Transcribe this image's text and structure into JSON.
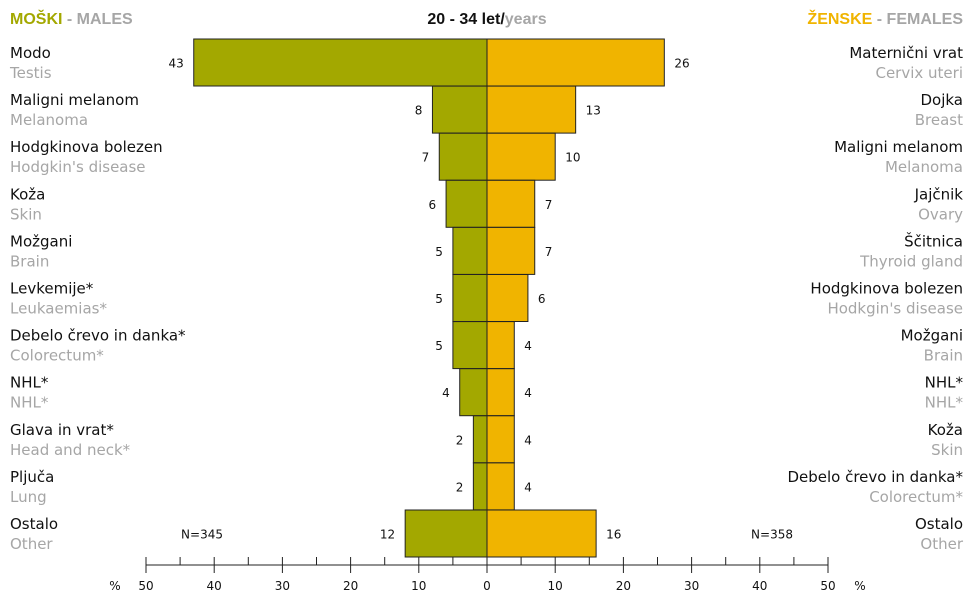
{
  "header": {
    "males_si": "MOŠKI",
    "sep": " - ",
    "males_en": "MALES",
    "title_main": "20 - 34 let/",
    "title_sub": "years",
    "females_si": "ŽENSKE",
    "females_en": "FEMALES"
  },
  "colors": {
    "males": "#a3a800",
    "females": "#f0b400",
    "gray": "#a6a6a6",
    "text": "#111111"
  },
  "chart_data": {
    "type": "bar",
    "orientation": "horizontal-population-pyramid",
    "males": {
      "n_label": "N=345",
      "categories": [
        {
          "si": "Modo",
          "en": "Testis",
          "value": 43
        },
        {
          "si": "Maligni melanom",
          "en": "Melanoma",
          "value": 8
        },
        {
          "si": "Hodgkinova bolezen",
          "en": "Hodgkin's disease",
          "value": 7
        },
        {
          "si": "Koža",
          "en": "Skin",
          "value": 6
        },
        {
          "si": "Možgani",
          "en": "Brain",
          "value": 5
        },
        {
          "si": "Levkemije*",
          "en": "Leukaemias*",
          "value": 5
        },
        {
          "si": "Debelo črevo in danka*",
          "en": "Colorectum*",
          "value": 5
        },
        {
          "si": "NHL*",
          "en": "NHL*",
          "value": 4
        },
        {
          "si": "Glava in vrat*",
          "en": "Head and neck*",
          "value": 2
        },
        {
          "si": "Pljuča",
          "en": "Lung",
          "value": 2
        },
        {
          "si": "Ostalo",
          "en": "Other",
          "value": 12
        }
      ]
    },
    "females": {
      "n_label": "N=358",
      "categories": [
        {
          "si": "Maternični vrat",
          "en": "Cervix uteri",
          "value": 26
        },
        {
          "si": "Dojka",
          "en": "Breast",
          "value": 13
        },
        {
          "si": "Maligni melanom",
          "en": "Melanoma",
          "value": 10
        },
        {
          "si": "Jajčnik",
          "en": "Ovary",
          "value": 7
        },
        {
          "si": "Ščitnica",
          "en": "Thyroid gland",
          "value": 7
        },
        {
          "si": "Hodgkinova bolezen",
          "en": "Hodkgin's disease",
          "value": 6
        },
        {
          "si": "Možgani",
          "en": "Brain",
          "value": 4
        },
        {
          "si": "NHL*",
          "en": "NHL*",
          "value": 4
        },
        {
          "si": "Koža",
          "en": "Skin",
          "value": 4
        },
        {
          "si": "Debelo črevo in danka*",
          "en": "Colorectum*",
          "value": 4
        },
        {
          "si": "Ostalo",
          "en": "Other",
          "value": 16
        }
      ]
    },
    "xaxis": {
      "unit": "%",
      "range": [
        -50,
        50
      ],
      "tick_labels": [
        "50",
        "40",
        "30",
        "20",
        "10",
        "0",
        "10",
        "20",
        "30",
        "40",
        "50"
      ],
      "tick_values": [
        -50,
        -40,
        -30,
        -20,
        -10,
        0,
        10,
        20,
        30,
        40,
        50
      ]
    }
  }
}
